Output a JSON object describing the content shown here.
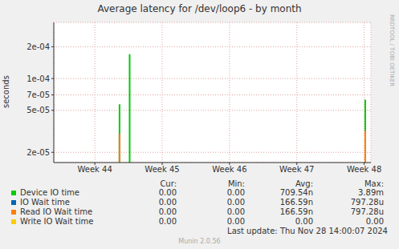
{
  "chart_data": {
    "type": "bar",
    "title": "Average latency for /dev/loop6 - by month",
    "y_label": "seconds",
    "side_text": "RRDTOOL / TOBI OETIKER",
    "footer": "Last update: Thu Nov 28 14:00:07 2024",
    "credit": "Munin 2.0.56",
    "log": "y",
    "grid": true,
    "x": [
      44.37,
      44.52,
      48.02
    ],
    "xlim": [
      43.39,
      48.1
    ],
    "xticks": [
      {
        "value": 44,
        "label": "Week 44"
      },
      {
        "value": 45,
        "label": "Week 45"
      },
      {
        "value": 46,
        "label": "Week 46"
      },
      {
        "value": 47,
        "label": "Week 47"
      },
      {
        "value": 48,
        "label": "Week 48"
      }
    ],
    "ylim": [
      1.6e-05,
      0.00034
    ],
    "yticks": [
      {
        "value": 2e-05,
        "label": "2e-05"
      },
      {
        "value": 5e-05,
        "label": "5e-05"
      },
      {
        "value": 7e-05,
        "label": "7e-05"
      },
      {
        "value": 0.0001,
        "label": "1e-04"
      },
      {
        "value": 0.0002,
        "label": "2e-04"
      }
    ],
    "series": [
      {
        "name": "Device IO time",
        "color": "#00cc00",
        "values": [
          5.7e-05,
          0.00017,
          6.3e-05
        ]
      },
      {
        "name": "IO Wait time",
        "color": "#0066b3",
        "values": [
          3e-05,
          null,
          3.2e-05
        ]
      },
      {
        "name": "Read IO Wait time",
        "color": "#ff8000",
        "values": [
          3e-05,
          null,
          3.2e-05
        ]
      },
      {
        "name": "Write IO Wait time",
        "color": "#ffcc00",
        "values": [
          null,
          null,
          null
        ]
      }
    ],
    "legend_table": {
      "columns": [
        "Cur:",
        "Min:",
        "Avg:",
        "Max:"
      ],
      "rows": [
        [
          "0.00",
          "0.00",
          "709.54n",
          "3.89m"
        ],
        [
          "0.00",
          "0.00",
          "166.59n",
          "797.28u"
        ],
        [
          "0.00",
          "0.00",
          "166.59n",
          "797.28u"
        ],
        [
          "0.00",
          "0.00",
          "0.00",
          "0.00"
        ]
      ]
    }
  }
}
